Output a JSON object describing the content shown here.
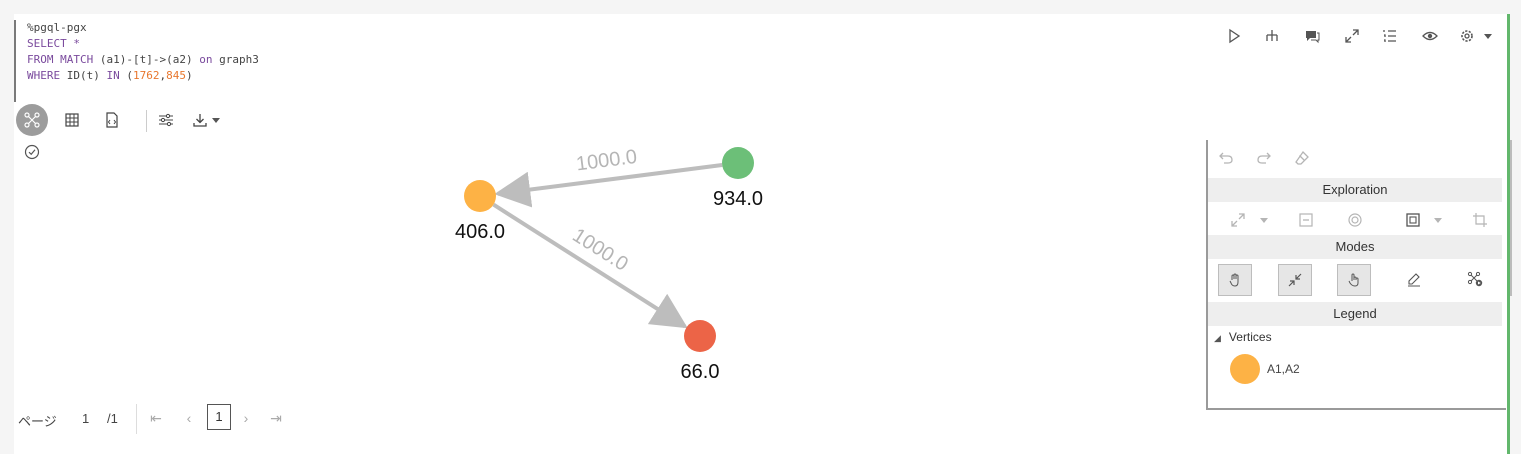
{
  "code": {
    "command": "%pgql-pgx",
    "select_kw": "SELECT",
    "select_rest": " *",
    "from_kw": "FROM MATCH",
    "from_rest": " (a1)-[t]->(a2) ",
    "on_kw": "on",
    "graph_name": " graph3",
    "where_kw": "WHERE",
    "where_fn": " ID(t) ",
    "in_kw": "IN",
    "paren_open": " (",
    "id1": "1762",
    "comma": ",",
    "id2": "845",
    "paren_close": ")"
  },
  "toolbar_icons": [
    "play-icon",
    "hierarchy-icon",
    "comment-icon",
    "expand-icon",
    "list-icon",
    "eye-icon",
    "gear-icon",
    "dropdown-arrow-icon"
  ],
  "view_icons": [
    "graph-view-icon",
    "table-view-icon",
    "script-icon",
    "settings-sliders-icon",
    "download-icon",
    "dropdown-arrow-icon"
  ],
  "graph": {
    "nodes": [
      {
        "id": "n1",
        "label": "406.0",
        "color": "#fdb245"
      },
      {
        "id": "n2",
        "label": "934.0",
        "color": "#6cbf78"
      },
      {
        "id": "n3",
        "label": "66.0",
        "color": "#ec6447"
      }
    ],
    "edges": [
      {
        "from": "n2",
        "to": "n1",
        "label": "1000.0"
      },
      {
        "from": "n1",
        "to": "n3",
        "label": "1000.0"
      }
    ],
    "edge_color": "#bdbdbd"
  },
  "panel": {
    "exploration_title": "Exploration",
    "modes_title": "Modes",
    "legend_title": "Legend",
    "vertices_label": "Vertices",
    "legend_items": [
      {
        "label": "A1,A2",
        "color": "#fdb245"
      }
    ]
  },
  "pager": {
    "page_label": "ページ",
    "current": "1",
    "total": "/1",
    "box_value": "1"
  }
}
